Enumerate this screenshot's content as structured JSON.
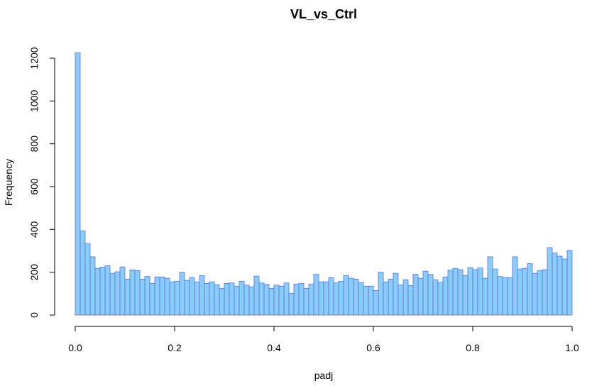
{
  "chart_data": {
    "type": "bar",
    "title": "VL_vs_Ctrl",
    "xlabel": "padj",
    "ylabel": "Frequency",
    "xlim": [
      0,
      1
    ],
    "ylim": [
      0,
      1200
    ],
    "xticks": [
      "0.0",
      "0.2",
      "0.4",
      "0.6",
      "0.8",
      "1.0"
    ],
    "yticks": [
      "0",
      "200",
      "400",
      "600",
      "800",
      "1000",
      "1200"
    ],
    "bin_width": 0.01,
    "bin_start": 0,
    "values": [
      1225,
      393,
      333,
      272,
      218,
      224,
      230,
      195,
      202,
      225,
      168,
      211,
      208,
      168,
      180,
      148,
      178,
      178,
      172,
      155,
      158,
      200,
      162,
      175,
      155,
      184,
      148,
      155,
      142,
      125,
      148,
      150,
      135,
      158,
      140,
      132,
      182,
      150,
      143,
      125,
      140,
      135,
      150,
      102,
      145,
      148,
      125,
      145,
      190,
      155,
      155,
      175,
      150,
      158,
      185,
      172,
      168,
      152,
      135,
      135,
      115,
      200,
      155,
      168,
      195,
      140,
      165,
      138,
      190,
      172,
      205,
      190,
      165,
      152,
      178,
      210,
      218,
      212,
      185,
      222,
      212,
      220,
      172,
      272,
      215,
      180,
      175,
      175,
      272,
      215,
      218,
      240,
      195,
      208,
      212,
      315,
      290,
      275,
      262,
      302
    ],
    "grid": false,
    "colors": {
      "fill": "#87CEFA",
      "border": "#6B6BD6"
    }
  }
}
